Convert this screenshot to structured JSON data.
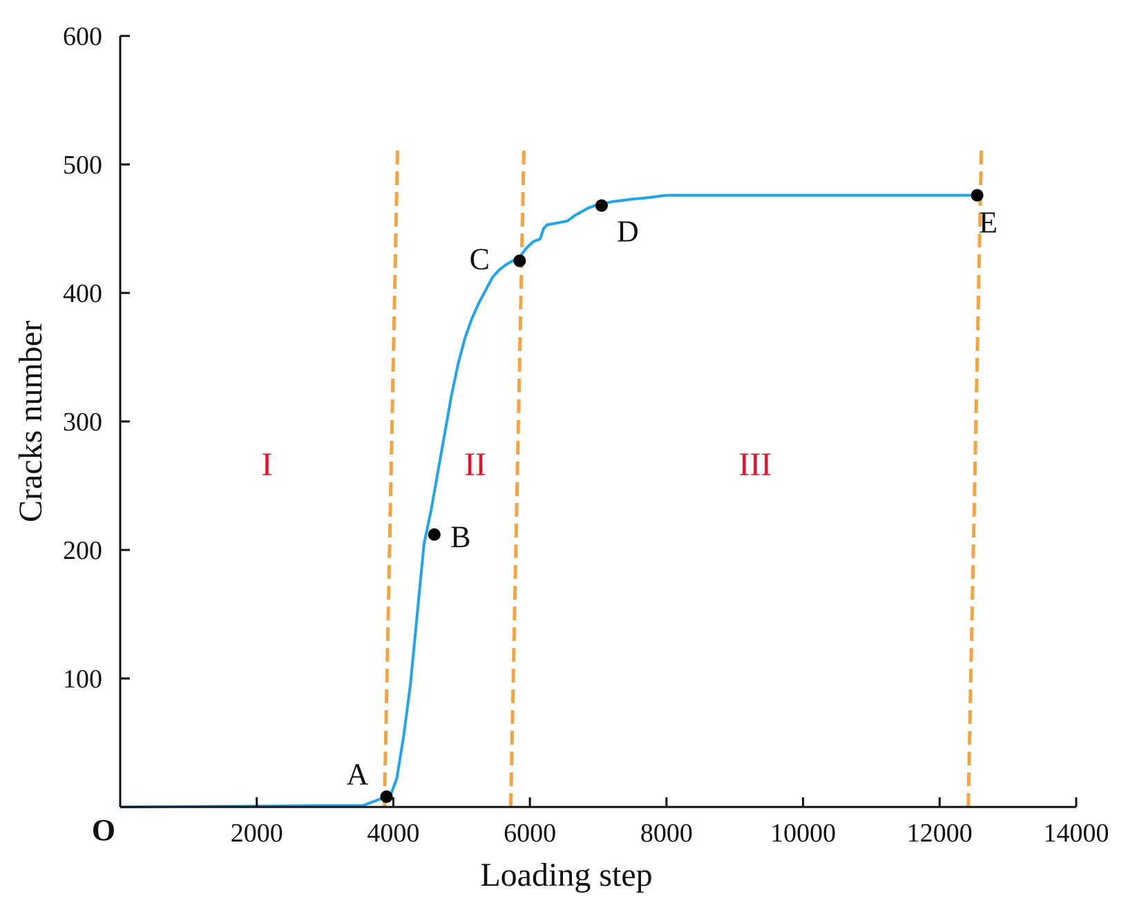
{
  "chart_data": {
    "type": "line",
    "title": "",
    "xlabel": "Loading step",
    "ylabel": "Cracks number",
    "origin_label": "O",
    "xlim": [
      0,
      14000
    ],
    "ylim": [
      0,
      600
    ],
    "x_ticks": [
      2000,
      4000,
      6000,
      8000,
      10000,
      12000,
      14000
    ],
    "x_tick_labels": [
      "2000",
      "4000",
      "6000",
      "8000",
      "10000",
      "12000",
      "14000"
    ],
    "y_ticks": [
      100,
      200,
      300,
      400,
      500,
      600
    ],
    "y_tick_labels": [
      "100",
      "200",
      "300",
      "400",
      "500",
      "600"
    ],
    "grid": false,
    "line_color": "#1EA5EC",
    "divider_color": "#F5A442",
    "region_label_color": "#E8112D",
    "point_color": "#000000",
    "series": [
      {
        "x": [
          0,
          2850,
          3550,
          3800,
          3950,
          4050,
          4150,
          4250,
          4350,
          4450,
          4550,
          4650,
          4750,
          4850,
          4950,
          5050,
          5150,
          5250,
          5350,
          5450,
          5550,
          5650,
          5750,
          5850,
          5950,
          6050,
          6150,
          6200,
          6250,
          6350,
          6450,
          6550,
          6650,
          6750,
          6850,
          6950,
          7050,
          7200,
          7350,
          7500,
          7700,
          8000,
          9000,
          10000,
          11000,
          12000,
          12550
        ],
        "y": [
          0,
          1,
          1,
          6,
          8,
          22,
          55,
          95,
          150,
          205,
          230,
          260,
          290,
          320,
          345,
          365,
          380,
          392,
          402,
          412,
          418,
          422,
          425,
          428,
          435,
          440,
          442,
          450,
          453,
          454,
          455,
          456,
          460,
          463,
          466,
          468,
          469,
          471,
          472,
          473,
          474,
          476,
          476,
          476,
          476,
          476,
          476
        ]
      }
    ],
    "points": [
      {
        "label": "A",
        "x": 3900,
        "y": 8
      },
      {
        "label": "B",
        "x": 4600,
        "y": 212
      },
      {
        "label": "C",
        "x": 5850,
        "y": 425
      },
      {
        "label": "D",
        "x": 7050,
        "y": 468
      },
      {
        "label": "E",
        "x": 12550,
        "y": 476
      }
    ],
    "dividers": [
      3950,
      5800,
      12500
    ],
    "regions": [
      {
        "label": "I",
        "x": 2150,
        "y": 258
      },
      {
        "label": "II",
        "x": 5200,
        "y": 258
      },
      {
        "label": "III",
        "x": 9300,
        "y": 258
      }
    ]
  }
}
